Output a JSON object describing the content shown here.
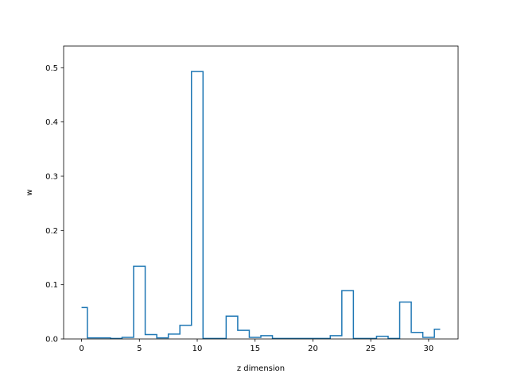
{
  "chart_data": {
    "type": "step",
    "xlabel": "z dimension",
    "ylabel": "w",
    "xlim": [
      -1.55,
      32.55
    ],
    "ylim": [
      0,
      0.54
    ],
    "xticks": [
      0,
      5,
      10,
      15,
      20,
      25,
      30
    ],
    "yticks": [
      0.0,
      0.1,
      0.2,
      0.3,
      0.4,
      0.5
    ],
    "xtick_labels": [
      "0",
      "5",
      "10",
      "15",
      "20",
      "25",
      "30"
    ],
    "ytick_labels": [
      "0.0",
      "0.1",
      "0.2",
      "0.3",
      "0.4",
      "0.5"
    ],
    "grid": false,
    "line_color": "#1f77b4",
    "x": [
      0,
      1,
      2,
      3,
      4,
      5,
      6,
      7,
      8,
      9,
      10,
      11,
      12,
      13,
      14,
      15,
      16,
      17,
      18,
      19,
      20,
      21,
      22,
      23,
      24,
      25,
      26,
      27,
      28,
      29,
      30,
      31
    ],
    "values": [
      0.058,
      0.002,
      0.002,
      0.001,
      0.003,
      0.134,
      0.008,
      0.002,
      0.009,
      0.025,
      0.493,
      0.001,
      0.001,
      0.042,
      0.016,
      0.003,
      0.006,
      0.001,
      0.001,
      0.001,
      0.001,
      0.001,
      0.006,
      0.089,
      0.001,
      0.001,
      0.005,
      0.001,
      0.068,
      0.012,
      0.003,
      0.018
    ]
  }
}
